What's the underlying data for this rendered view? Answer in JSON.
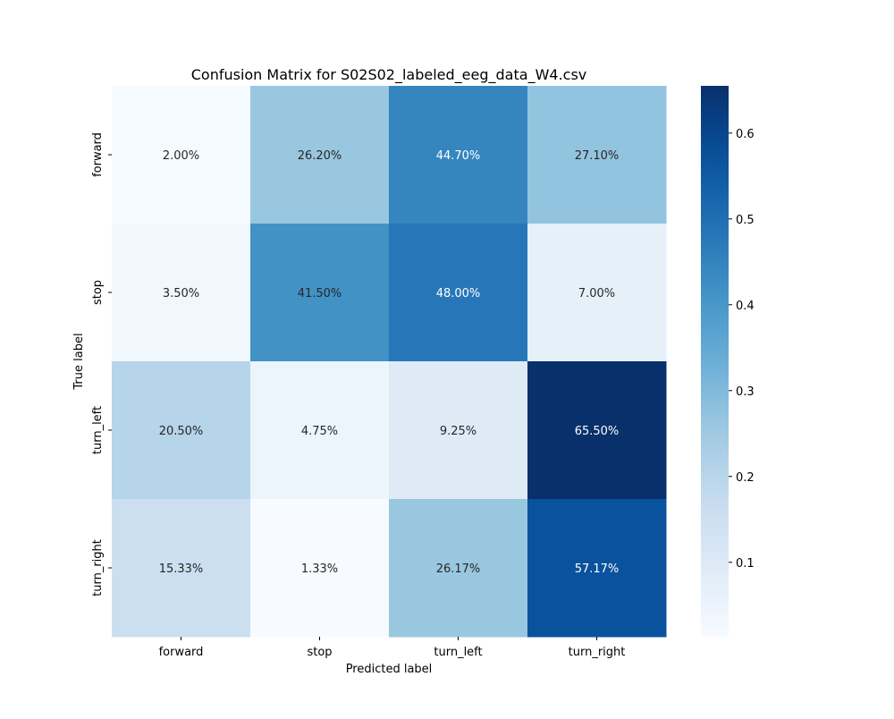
{
  "chart_data": {
    "type": "heatmap",
    "title": "Confusion Matrix for S02S02_labeled_eeg_data_W4.csv",
    "xlabel": "Predicted label",
    "ylabel": "True label",
    "x_categories": [
      "forward",
      "stop",
      "turn_left",
      "turn_right"
    ],
    "y_categories": [
      "forward",
      "stop",
      "turn_left",
      "turn_right"
    ],
    "values": [
      [
        0.02,
        0.262,
        0.447,
        0.271
      ],
      [
        0.035,
        0.415,
        0.48,
        0.07
      ],
      [
        0.205,
        0.0475,
        0.0925,
        0.655
      ],
      [
        0.1533,
        0.0133,
        0.2617,
        0.5717
      ]
    ],
    "annotations": [
      [
        "2.00%",
        "26.20%",
        "44.70%",
        "27.10%"
      ],
      [
        "3.50%",
        "41.50%",
        "48.00%",
        "7.00%"
      ],
      [
        "20.50%",
        "4.75%",
        "9.25%",
        "65.50%"
      ],
      [
        "15.33%",
        "1.33%",
        "26.17%",
        "57.17%"
      ]
    ],
    "colormap": "Blues",
    "colorbar": {
      "range": [
        0.0133,
        0.655
      ],
      "ticks": [
        0.1,
        0.2,
        0.3,
        0.4,
        0.5,
        0.6
      ],
      "tick_labels": [
        "0.1",
        "0.2",
        "0.3",
        "0.4",
        "0.5",
        "0.6"
      ]
    }
  }
}
